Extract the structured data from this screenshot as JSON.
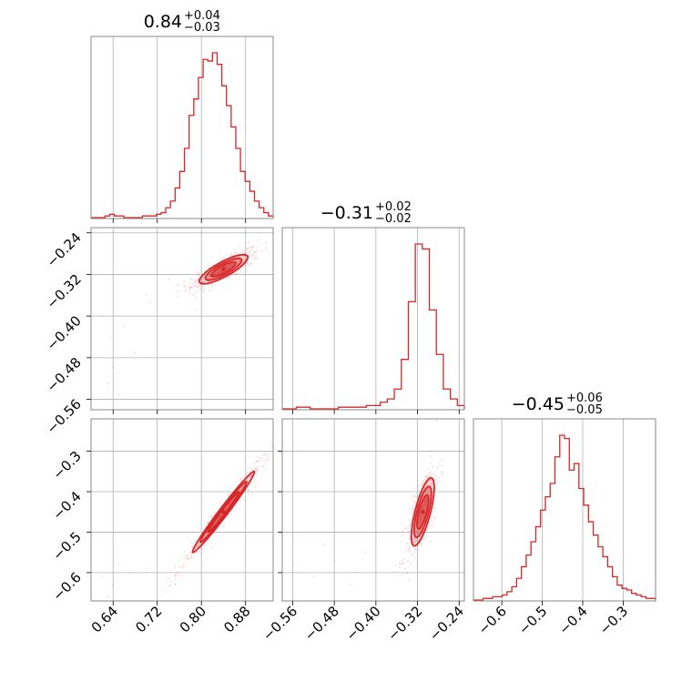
{
  "chart_data": {
    "type": "corner",
    "color": "#d62728",
    "parameters": [
      {
        "title_main": "0.84",
        "title_plus": "+0.04",
        "title_minus": "−0.03",
        "median": 0.84,
        "err_plus": 0.04,
        "err_minus": 0.03,
        "range": [
          0.6,
          0.93
        ],
        "ticks": [
          0.64,
          0.72,
          0.8,
          0.88
        ],
        "tick_labels": [
          "0.64",
          "0.72",
          "0.80",
          "0.88"
        ]
      },
      {
        "title_main": "−0.31",
        "title_plus": "+0.02",
        "title_minus": "−0.02",
        "median": -0.31,
        "err_plus": 0.02,
        "err_minus": 0.02,
        "range": [
          -0.58,
          -0.23
        ],
        "ticks": [
          -0.56,
          -0.48,
          -0.4,
          -0.32,
          -0.24
        ],
        "tick_labels": [
          "−0.56",
          "−0.48",
          "−0.40",
          "−0.32",
          "−0.24"
        ]
      },
      {
        "title_main": "−0.45",
        "title_plus": "+0.06",
        "title_minus": "−0.05",
        "median": -0.45,
        "err_plus": 0.06,
        "err_minus": 0.05,
        "range": [
          -0.67,
          -0.22
        ],
        "ticks": [
          -0.6,
          -0.5,
          -0.4,
          -0.3
        ],
        "tick_labels": [
          "−0.6",
          "−0.5",
          "−0.4",
          "−0.3"
        ]
      }
    ],
    "histograms": [
      [
        0,
        0,
        0,
        1,
        2,
        1,
        1,
        0,
        0,
        0,
        0,
        1,
        1,
        1,
        2,
        3,
        6,
        10,
        18,
        28,
        42,
        62,
        72,
        85,
        96,
        95,
        100,
        93,
        80,
        68,
        55,
        42,
        28,
        22,
        16,
        10,
        6,
        3,
        1
      ],
      [
        0,
        0,
        1,
        1,
        0,
        0,
        0,
        0,
        1,
        1,
        1,
        1,
        2,
        2,
        4,
        6,
        12,
        30,
        65,
        100,
        97,
        60,
        33,
        12,
        6,
        2
      ],
      [
        0,
        0,
        1,
        1,
        2,
        2,
        3,
        5,
        8,
        13,
        20,
        27,
        35,
        44,
        54,
        62,
        70,
        86,
        99,
        97,
        78,
        82,
        67,
        57,
        47,
        39,
        32,
        26,
        20,
        14,
        9,
        7,
        6,
        4,
        3,
        2,
        1,
        1
      ]
    ],
    "grid": true,
    "contours_2d": true
  }
}
